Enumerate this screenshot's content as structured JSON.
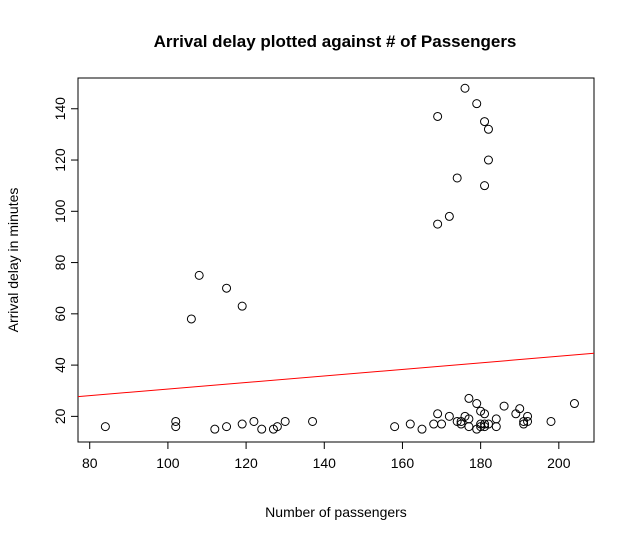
{
  "chart_data": {
    "type": "scatter",
    "title": "Arrival delay plotted against # of Passengers",
    "xlabel": "Number of passengers",
    "ylabel": "Arrival delay in minutes",
    "xlim": [
      77,
      209
    ],
    "ylim": [
      10,
      152
    ],
    "x_ticks": [
      80,
      100,
      120,
      140,
      160,
      180,
      200
    ],
    "y_ticks": [
      20,
      40,
      60,
      80,
      100,
      120,
      140
    ],
    "grid": false,
    "points": [
      {
        "x": 84,
        "y": 16
      },
      {
        "x": 102,
        "y": 18
      },
      {
        "x": 102,
        "y": 16
      },
      {
        "x": 106,
        "y": 58
      },
      {
        "x": 108,
        "y": 75
      },
      {
        "x": 112,
        "y": 15
      },
      {
        "x": 115,
        "y": 70
      },
      {
        "x": 115,
        "y": 16
      },
      {
        "x": 119,
        "y": 63
      },
      {
        "x": 119,
        "y": 17
      },
      {
        "x": 122,
        "y": 18
      },
      {
        "x": 124,
        "y": 15
      },
      {
        "x": 127,
        "y": 15
      },
      {
        "x": 128,
        "y": 16
      },
      {
        "x": 130,
        "y": 18
      },
      {
        "x": 137,
        "y": 18
      },
      {
        "x": 158,
        "y": 16
      },
      {
        "x": 162,
        "y": 17
      },
      {
        "x": 165,
        "y": 15
      },
      {
        "x": 168,
        "y": 17
      },
      {
        "x": 169,
        "y": 21
      },
      {
        "x": 169,
        "y": 137
      },
      {
        "x": 169,
        "y": 95
      },
      {
        "x": 170,
        "y": 17
      },
      {
        "x": 172,
        "y": 98
      },
      {
        "x": 172,
        "y": 20
      },
      {
        "x": 174,
        "y": 113
      },
      {
        "x": 174,
        "y": 18
      },
      {
        "x": 175,
        "y": 17
      },
      {
        "x": 175,
        "y": 18
      },
      {
        "x": 176,
        "y": 148
      },
      {
        "x": 176,
        "y": 20
      },
      {
        "x": 177,
        "y": 19
      },
      {
        "x": 177,
        "y": 27
      },
      {
        "x": 177,
        "y": 16
      },
      {
        "x": 179,
        "y": 142
      },
      {
        "x": 179,
        "y": 25
      },
      {
        "x": 179,
        "y": 15
      },
      {
        "x": 180,
        "y": 22
      },
      {
        "x": 180,
        "y": 17
      },
      {
        "x": 180,
        "y": 16
      },
      {
        "x": 181,
        "y": 135
      },
      {
        "x": 181,
        "y": 110
      },
      {
        "x": 181,
        "y": 21
      },
      {
        "x": 181,
        "y": 17
      },
      {
        "x": 181,
        "y": 16
      },
      {
        "x": 182,
        "y": 132
      },
      {
        "x": 182,
        "y": 120
      },
      {
        "x": 182,
        "y": 17
      },
      {
        "x": 184,
        "y": 19
      },
      {
        "x": 184,
        "y": 16
      },
      {
        "x": 186,
        "y": 24
      },
      {
        "x": 189,
        "y": 21
      },
      {
        "x": 190,
        "y": 23
      },
      {
        "x": 191,
        "y": 18
      },
      {
        "x": 191,
        "y": 17
      },
      {
        "x": 192,
        "y": 20
      },
      {
        "x": 192,
        "y": 18
      },
      {
        "x": 198,
        "y": 18
      },
      {
        "x": 204,
        "y": 25
      }
    ],
    "regression_line": {
      "x": [
        77,
        209
      ],
      "y": [
        27.7,
        44.6
      ],
      "color": "#ff0000"
    },
    "point_color": "#000000"
  }
}
